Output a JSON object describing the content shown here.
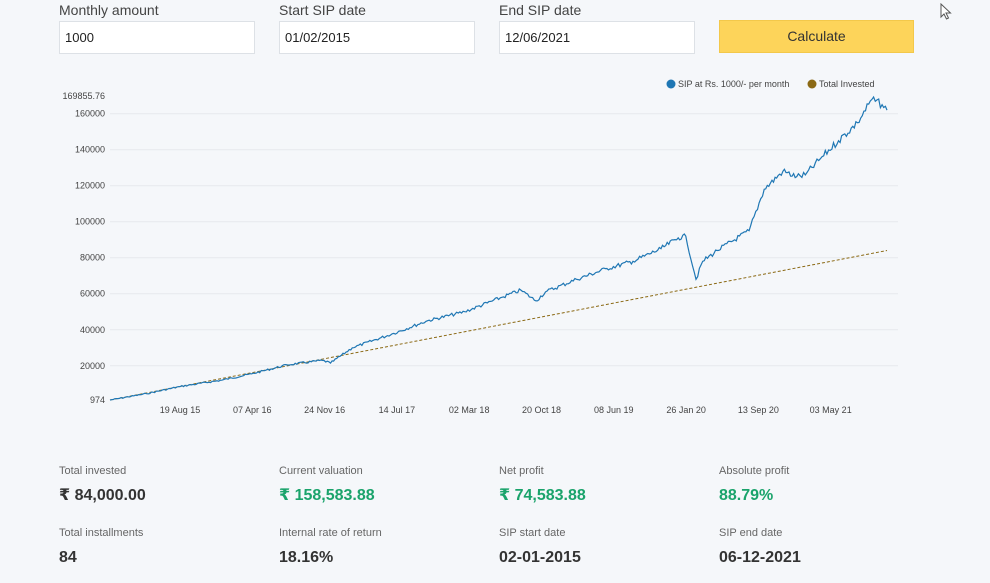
{
  "form": {
    "monthly_amount": {
      "label": "Monthly amount",
      "value": "1000"
    },
    "start_date": {
      "label": "Start SIP date",
      "value": "01/02/2015"
    },
    "end_date": {
      "label": "End SIP date",
      "value": "12/06/2021"
    },
    "calculate_label": "Calculate"
  },
  "colors": {
    "accent": "#fdd45a",
    "sip_line": "#1f77b4",
    "invested_line": "#8b6914",
    "positive": "#1aa36b"
  },
  "chart_data": {
    "type": "line",
    "legend": [
      "SIP at Rs. 1000/- per month",
      "Total Invested"
    ],
    "y_ticks": [
      "974",
      "20000",
      "40000",
      "60000",
      "80000",
      "100000",
      "120000",
      "140000",
      "160000",
      "169855.76"
    ],
    "y_tick_values": [
      974,
      20000,
      40000,
      60000,
      80000,
      100000,
      120000,
      140000,
      160000,
      169855.76
    ],
    "ylim": [
      974,
      169855.76
    ],
    "x_ticks": [
      "19 Aug 15",
      "07 Apr 16",
      "24 Nov 16",
      "14 Jul 17",
      "02 Mar 18",
      "20 Oct 18",
      "08 Jun 19",
      "26 Jan 20",
      "13 Sep 20",
      "03 May 21"
    ],
    "x_range": [
      "2015-01-02",
      "2021-12-06"
    ],
    "series": [
      {
        "name": "SIP at Rs. 1000/- per month",
        "x": [
          "2015-01-02",
          "2015-05-01",
          "2015-08-19",
          "2016-01-01",
          "2016-04-07",
          "2016-08-01",
          "2016-11-24",
          "2016-12-20",
          "2017-03-01",
          "2017-07-14",
          "2017-11-01",
          "2018-03-02",
          "2018-07-01",
          "2018-09-01",
          "2018-10-20",
          "2018-11-20",
          "2019-03-01",
          "2019-06-08",
          "2019-09-01",
          "2019-12-01",
          "2020-01-26",
          "2020-02-20",
          "2020-03-24",
          "2020-04-15",
          "2020-06-01",
          "2020-09-13",
          "2020-11-01",
          "2021-01-01",
          "2021-02-15",
          "2021-03-15",
          "2021-05-03",
          "2021-07-01",
          "2021-09-01",
          "2021-10-18",
          "2021-11-20",
          "2021-12-06"
        ],
        "values": [
          974,
          4500,
          8500,
          12000,
          15500,
          20500,
          23000,
          21500,
          30000,
          38000,
          45000,
          50000,
          58000,
          62000,
          56000,
          61000,
          68000,
          74000,
          78000,
          85000,
          91000,
          92000,
          68000,
          78000,
          84000,
          95000,
          118000,
          128000,
          125000,
          126000,
          135000,
          145000,
          155000,
          168000,
          165000,
          162000
        ]
      },
      {
        "name": "Total Invested",
        "x": [
          "2015-01-02",
          "2021-12-06"
        ],
        "values": [
          1000,
          84000
        ]
      }
    ]
  },
  "stats": [
    {
      "label": "Total invested",
      "value": "₹ 84,000.00",
      "highlight": false
    },
    {
      "label": "Current valuation",
      "value": "₹ 158,583.88",
      "highlight": true
    },
    {
      "label": "Net profit",
      "value": "₹ 74,583.88",
      "highlight": true
    },
    {
      "label": "Absolute profit",
      "value": "88.79%",
      "highlight": true
    },
    {
      "label": "Total installments",
      "value": "84",
      "highlight": false
    },
    {
      "label": "Internal rate of return",
      "value": "18.16%",
      "highlight": false
    },
    {
      "label": "SIP start date",
      "value": "02-01-2015",
      "highlight": false
    },
    {
      "label": "SIP end date",
      "value": "06-12-2021",
      "highlight": false
    }
  ],
  "icons": {
    "cursor": "mouse-pointer-icon"
  }
}
